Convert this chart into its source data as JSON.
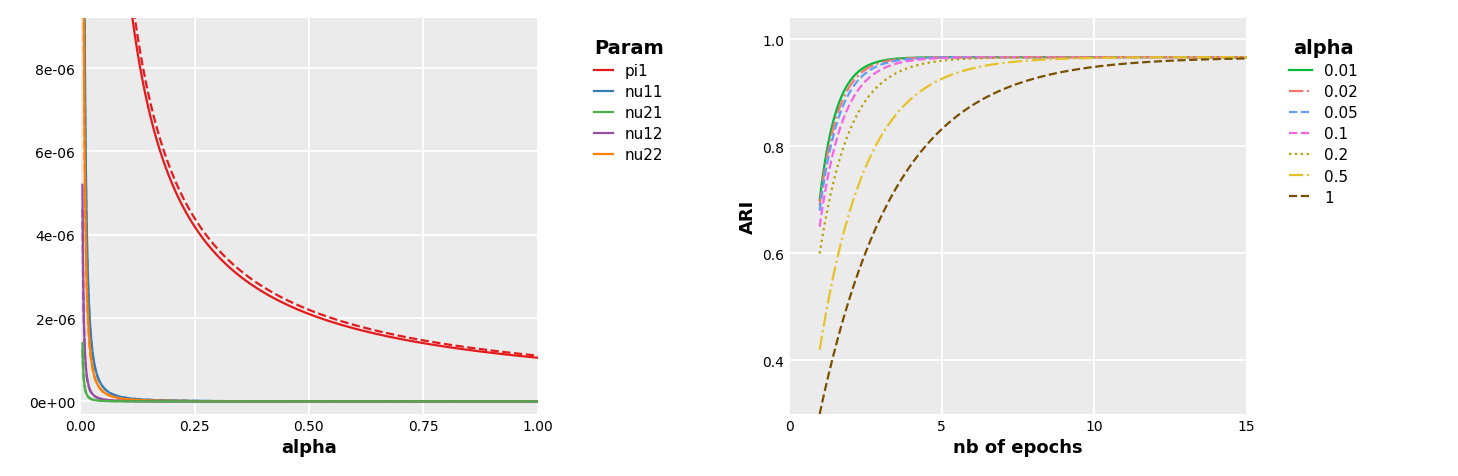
{
  "left_plot": {
    "xlabel": "alpha",
    "xlim": [
      0,
      1.0
    ],
    "ylim": [
      -3e-07,
      9.2e-06
    ],
    "yticks": [
      0,
      2e-06,
      4e-06,
      6e-06,
      8e-06
    ],
    "ytick_labels": [
      "0e+00",
      "2e-06",
      "4e-06",
      "6e-06",
      "8e-06"
    ],
    "xticks": [
      0.0,
      0.25,
      0.5,
      0.75,
      1.0
    ],
    "xtick_labels": [
      "0.00",
      "0.25",
      "0.50",
      "0.75",
      "1.00"
    ],
    "bg_color": "#ebebeb",
    "grid_color": "white",
    "legend_title": "Param",
    "legend_labels": [
      "pi1",
      "nu11",
      "nu21",
      "nu12",
      "nu22"
    ],
    "legend_colors": [
      "#e41a1c",
      "#377eb8",
      "#4daf4a",
      "#984ea3",
      "#ff7f00"
    ]
  },
  "right_plot": {
    "xlabel": "nb of epochs",
    "ylabel": "ARI",
    "xlim": [
      0,
      15
    ],
    "ylim": [
      0.3,
      1.04
    ],
    "xticks": [
      0,
      5,
      10,
      15
    ],
    "yticks": [
      0.4,
      0.6,
      0.8,
      1.0
    ],
    "ytick_labels": [
      "0.4",
      "0.6",
      "0.8",
      "1.0"
    ],
    "bg_color": "#ebebeb",
    "grid_color": "white",
    "alpha_curve_params": [
      {
        "label": "0.01",
        "color": "#00ba38",
        "linestyle": "solid",
        "rate": 1.8,
        "start": 0.7
      },
      {
        "label": "0.02",
        "color": "#f8766d",
        "linestyle": "dashdot",
        "rate": 1.65,
        "start": 0.69
      },
      {
        "label": "0.05",
        "color": "#619cff",
        "linestyle": "dashed",
        "rate": 1.5,
        "start": 0.68
      },
      {
        "label": "0.1",
        "color": "#f564e3",
        "linestyle": "dashed",
        "rate": 1.3,
        "start": 0.65
      },
      {
        "label": "0.2",
        "color": "#b79f00",
        "linestyle": "dotted",
        "rate": 1.0,
        "start": 0.6
      },
      {
        "label": "0.5",
        "color": "#e6c229",
        "linestyle": "dashdot",
        "rate": 0.65,
        "start": 0.42
      },
      {
        "label": "1",
        "color": "#7b4f00",
        "linestyle": "dashed",
        "rate": 0.4,
        "start": 0.3
      }
    ],
    "legend_title": "alpha"
  }
}
